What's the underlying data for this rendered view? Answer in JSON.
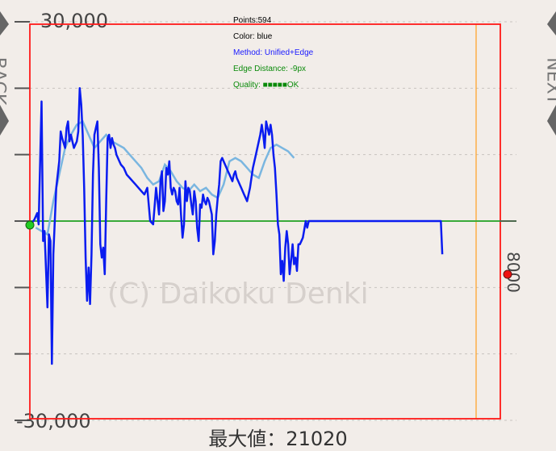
{
  "nav": {
    "back_label": "BACK",
    "next_label": "NEXT"
  },
  "info": {
    "points": "Points:594",
    "color": "Color: blue",
    "method": "Method: Unified+Edge",
    "edge_distance": "Edge Distance: -9px",
    "quality": "Quality: ■■■■■OK"
  },
  "watermark": "(C) Daikoku Denki",
  "max_label": "最大値：21020",
  "colors": {
    "trace": "#0a1cf0",
    "ghost": "#7ab6e0",
    "zero_line": "#3aaa3a",
    "frame": "#ff1a1a",
    "end_box": "#ffa020",
    "start_marker": "#22cc22",
    "end_marker": "#ee1111",
    "info_points": "#000000",
    "info_method": "#1a1aff",
    "info_quality": "#0a8a0a"
  },
  "chart_data": {
    "type": "line",
    "ylim": [
      -30000,
      30000
    ],
    "xlim": [
      0,
      8000
    ],
    "y_tick_labels": [
      "30,000",
      "-30,000"
    ],
    "right_label": "8000",
    "series": [
      {
        "x": [
          0,
          25,
          75,
          125,
          150,
          200,
          225,
          250,
          300,
          325,
          350,
          375,
          400,
          450,
          500,
          525,
          550,
          600,
          625,
          650,
          675,
          700,
          725,
          750,
          775,
          800,
          825,
          850,
          875,
          900,
          925,
          950,
          975,
          1000,
          1025,
          1050,
          1075,
          1100,
          1125,
          1150,
          1175,
          1200,
          1225,
          1250,
          1275,
          1300,
          1325,
          1350,
          1375,
          1400,
          1425,
          1450,
          1475,
          1500,
          1525,
          1550,
          1600,
          1625,
          1650,
          1700,
          1750,
          1800,
          1850,
          1900,
          1950,
          2000,
          2050,
          2100,
          2150,
          2200,
          2225,
          2250,
          2275,
          2300,
          2325,
          2350,
          2375,
          2400,
          2425,
          2450,
          2475,
          2500,
          2525,
          2550,
          2575,
          2600,
          2625,
          2650,
          2675,
          2700,
          2725,
          2750,
          2775,
          2800,
          2825,
          2850,
          2875,
          2900,
          2925,
          2950,
          2975,
          3000,
          3025,
          3050,
          3075,
          3100,
          3125,
          3150,
          3175,
          3200,
          3225,
          3250,
          3275,
          3300,
          3325,
          3350,
          3375,
          3400,
          3425,
          3450,
          3475,
          3500,
          3525,
          3550,
          3575,
          3600,
          3650,
          3700,
          3750,
          3800,
          3850,
          3900,
          3925,
          3950,
          3975,
          4000,
          4025,
          4050,
          4075,
          4100,
          4125,
          4150,
          4175,
          4200,
          4225,
          4250,
          4275,
          4300,
          4325,
          4350,
          4375,
          4400,
          4425,
          4450,
          4475,
          4500,
          4525,
          4550,
          4575,
          4600,
          4625,
          4650,
          4700,
          4725,
          4750,
          4800,
          4850,
          4900,
          5000,
          5500,
          6000,
          6500,
          6975,
          7000,
          7025
        ],
        "y": [
          0,
          -400,
          200,
          1200,
          -500,
          18000,
          -3000,
          -1500,
          -13000,
          -2000,
          -3000,
          -21500,
          -5000,
          5000,
          9000,
          13500,
          12500,
          11000,
          14000,
          15000,
          12000,
          13000,
          12000,
          11000,
          11500,
          12000,
          13500,
          20000,
          17500,
          13000,
          5000,
          -5500,
          -12000,
          -7000,
          -12500,
          -5000,
          7000,
          13000,
          14000,
          15000,
          8000,
          -3500,
          -5500,
          -4000,
          -8000,
          3000,
          12500,
          13000,
          11000,
          12500,
          11500,
          11000,
          10000,
          9500,
          9000,
          8500,
          8000,
          7500,
          7000,
          6500,
          6000,
          5500,
          5000,
          4500,
          4000,
          5000,
          0,
          -500,
          5000,
          1000,
          6000,
          7500,
          1500,
          3000,
          8000,
          7000,
          9000,
          5000,
          4000,
          5000,
          4500,
          3000,
          2500,
          5000,
          1000,
          -2500,
          -500,
          6000,
          3000,
          5000,
          4500,
          2500,
          1000,
          4500,
          3000,
          -1000,
          -3000,
          2500,
          2000,
          4000,
          3000,
          2500,
          3500,
          3000,
          2000,
          1000,
          -5000,
          -3000,
          1000,
          3500,
          5500,
          9000,
          9500,
          9000,
          8500,
          8000,
          7500,
          7000,
          6500,
          6000,
          7000,
          7500,
          6500,
          6000,
          5500,
          5000,
          4000,
          3000,
          5000,
          8000,
          10000,
          12000,
          13000,
          14500,
          13000,
          11000,
          15000,
          14000,
          13000,
          14500,
          13000,
          10000,
          8000,
          4000,
          -500,
          -2000,
          -8000,
          -6000,
          -9000,
          -4000,
          -1500,
          -3500,
          -8000,
          -6000,
          -3500,
          -6500,
          -5500,
          -7500,
          -3500,
          -3500,
          -3000,
          -2500,
          0,
          -1000,
          0,
          0,
          0,
          0,
          0,
          0,
          0,
          0,
          0,
          0,
          -5000
        ]
      }
    ],
    "ghost_series": {
      "x": [
        100,
        200,
        300,
        400,
        500,
        600,
        700,
        800,
        900,
        1000,
        1100,
        1200,
        1300,
        1400,
        1500,
        1600,
        1700,
        1800,
        1900,
        2000,
        2100,
        2200,
        2300,
        2400,
        2500,
        2600,
        2700,
        2800,
        2900,
        3000,
        3100,
        3200,
        3300,
        3400,
        3500,
        3600,
        3700,
        3800,
        3900,
        4000,
        4100,
        4200,
        4300,
        4400,
        4500
      ],
      "y": [
        -1000,
        -1500,
        -2000,
        3000,
        7000,
        11000,
        13000,
        14500,
        15000,
        13000,
        11000,
        12000,
        13000,
        12000,
        11500,
        11000,
        10000,
        9000,
        8000,
        6500,
        5500,
        6000,
        8500,
        7500,
        6000,
        5000,
        4500,
        5500,
        4500,
        5000,
        4000,
        3500,
        5500,
        9000,
        9500,
        9000,
        8000,
        7000,
        6500,
        9000,
        11000,
        11500,
        11000,
        10500,
        9500
      ]
    }
  }
}
